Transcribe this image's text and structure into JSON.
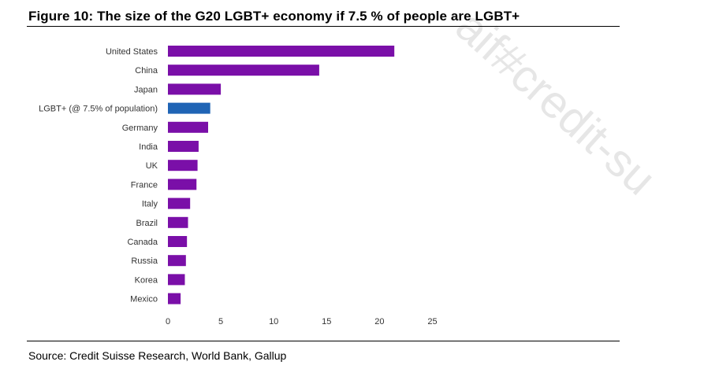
{
  "figure": {
    "title": "Figure 10: The size of the G20 LGBT+ economy if 7.5 % of people are LGBT+",
    "source": "Source: Credit Suisse Research, World Bank, Gallup",
    "watermark": "aif#credit-su"
  },
  "colors": {
    "bar": "#7a0fa8",
    "highlight": "#1f64b5"
  },
  "chart_data": {
    "type": "bar",
    "orientation": "horizontal",
    "title": "Figure 10: The size of the G20 LGBT+ economy if 7.5 % of people are LGBT+",
    "xlabel": "",
    "ylabel": "",
    "xlim": [
      0,
      25
    ],
    "xticks": [
      0,
      5,
      10,
      15,
      20,
      25
    ],
    "grid": false,
    "categories": [
      "United States",
      "China",
      "Japan",
      "LGBT+ (@ 7.5% of population)",
      "Germany",
      "India",
      "UK",
      "France",
      "Italy",
      "Brazil",
      "Canada",
      "Russia",
      "Korea",
      "Mexico"
    ],
    "values": [
      21.4,
      14.3,
      5.0,
      4.0,
      3.8,
      2.9,
      2.8,
      2.7,
      2.1,
      1.9,
      1.8,
      1.7,
      1.6,
      1.2
    ],
    "highlight_index": 3
  }
}
